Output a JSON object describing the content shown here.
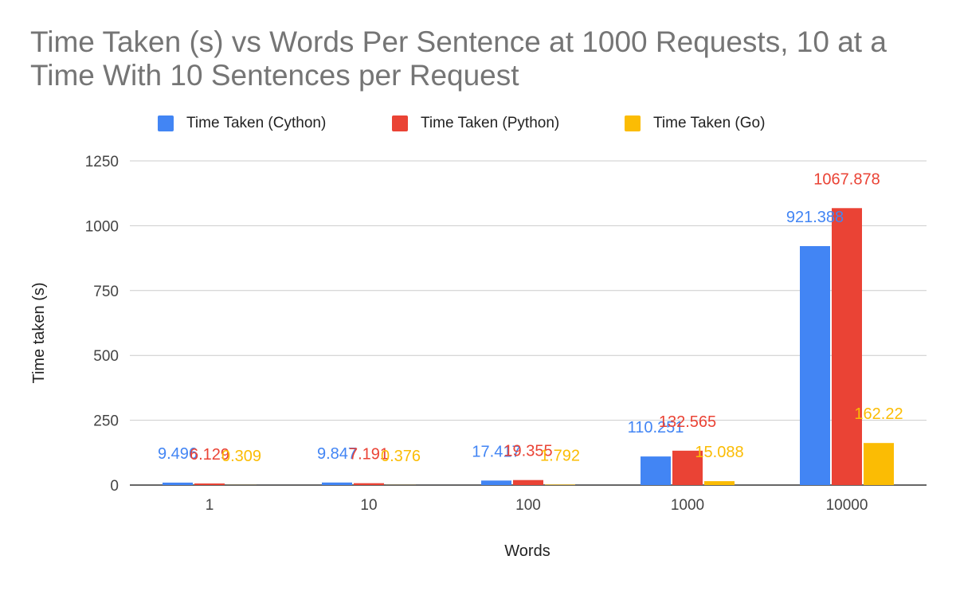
{
  "chart_data": {
    "type": "bar",
    "title": "Time Taken (s) vs Words Per Sentence at 1000 Requests, 10 at a Time With 10 Sentences per Request",
    "xlabel": "Words",
    "ylabel": "Time taken (s)",
    "categories": [
      "1",
      "10",
      "100",
      "1000",
      "10000"
    ],
    "ylim": [
      0,
      1250
    ],
    "yticks": [
      0,
      250,
      500,
      750,
      1000,
      1250
    ],
    "grid": true,
    "legend_position": "top",
    "series": [
      {
        "name": "Time Taken (Cython)",
        "color": "#4285F4",
        "values": [
          9.496,
          9.847,
          17.417,
          110.251,
          921.388
        ],
        "labels": [
          "9.496",
          "9.847",
          "17.417",
          "110.251",
          "921.388"
        ]
      },
      {
        "name": "Time Taken (Python)",
        "color": "#EA4335",
        "values": [
          6.129,
          7.191,
          19.355,
          132.565,
          1067.878
        ],
        "labels": [
          "6.129",
          "7.191",
          "19.355",
          "132.565",
          "1067.878"
        ]
      },
      {
        "name": "Time Taken (Go)",
        "color": "#FBBC04",
        "values": [
          0.309,
          0.376,
          1.792,
          15.088,
          162.22
        ],
        "labels": [
          "0.309",
          "0.376",
          "1.792",
          "15.088",
          "162.22"
        ]
      }
    ]
  }
}
